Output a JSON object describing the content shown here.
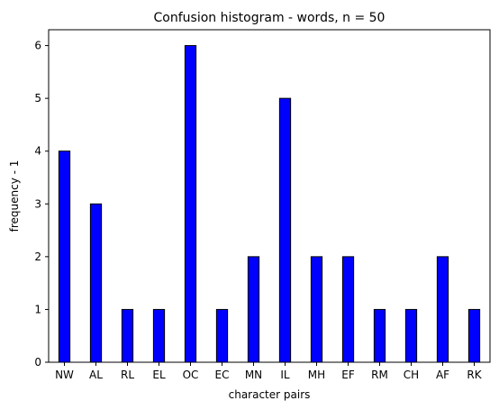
{
  "chart_data": {
    "type": "bar",
    "title": "Confusion histogram - words, n = 50",
    "xlabel": "character pairs",
    "ylabel": "frequency - 1",
    "categories": [
      "NW",
      "AL",
      "RL",
      "EL",
      "OC",
      "EC",
      "MN",
      "IL",
      "MH",
      "EF",
      "RM",
      "CH",
      "AF",
      "RK"
    ],
    "values": [
      4,
      3,
      1,
      1,
      6,
      1,
      2,
      5,
      2,
      2,
      1,
      1,
      2,
      1
    ],
    "yticks": [
      "0",
      "1",
      "2",
      "3",
      "4",
      "5",
      "6"
    ],
    "ylim": [
      0,
      6.3
    ],
    "grid": false,
    "bar_color": "#0000ff",
    "edge_color": "#000000"
  }
}
